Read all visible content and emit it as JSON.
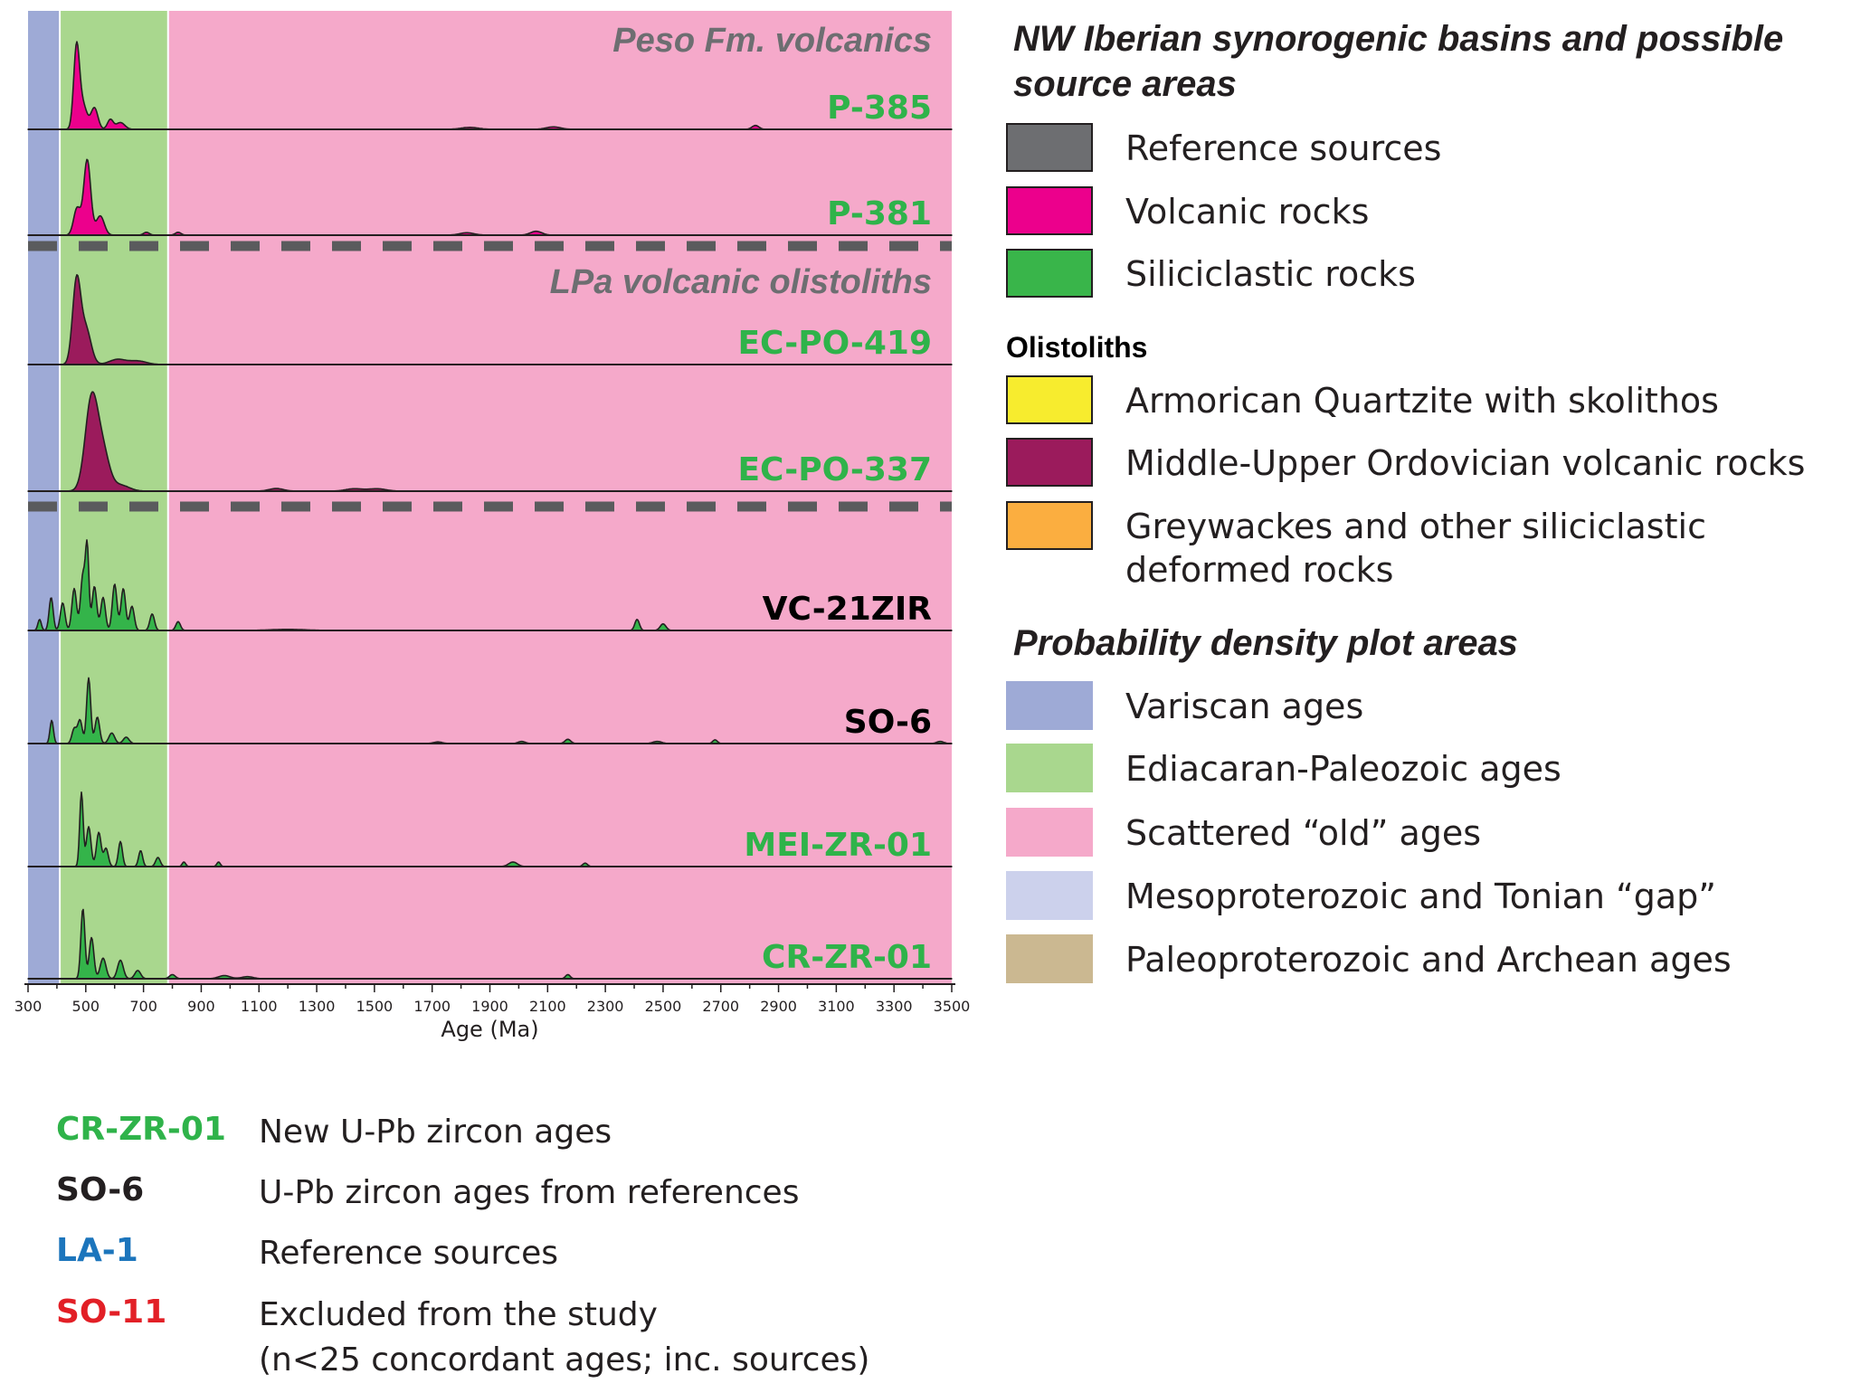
{
  "chart_data": {
    "type": "area",
    "xlabel": "Age (Ma)",
    "x_ticks": [
      "300",
      "500",
      "700",
      "900",
      "1100",
      "1300",
      "1500",
      "1700",
      "1900",
      "2100",
      "2300",
      "2500",
      "2700",
      "2900",
      "3100",
      "3300",
      "3500"
    ],
    "xlim": [
      300,
      3500
    ],
    "background_bands": [
      {
        "from": 300,
        "to": 410,
        "color": "#9eaad6"
      },
      {
        "from": 410,
        "to": 785,
        "color": "#a9d78e"
      },
      {
        "from": 785,
        "to": 3500,
        "color": "#f5a9ca"
      }
    ],
    "section_titles": [
      {
        "text": "Peso Fm. volcanics",
        "before_row": 0
      },
      {
        "text": "LPa volcanic olistoliths",
        "before_row": 2
      }
    ],
    "dividers_after_rows": [
      1,
      3
    ],
    "rows": [
      {
        "name": "P-385",
        "label_color": "#2fb34a",
        "fill": "#ec008c",
        "peaks": [
          [
            468,
            0.82,
            10
          ],
          [
            490,
            0.25,
            14
          ],
          [
            530,
            0.22,
            12
          ],
          [
            585,
            0.1,
            10
          ],
          [
            620,
            0.07,
            15
          ],
          [
            1830,
            0.02,
            30
          ],
          [
            2120,
            0.025,
            25
          ],
          [
            2820,
            0.04,
            12
          ]
        ]
      },
      {
        "name": "P-381",
        "label_color": "#2fb34a",
        "fill": "#ec008c",
        "peaks": [
          [
            505,
            0.78,
            12
          ],
          [
            470,
            0.28,
            12
          ],
          [
            550,
            0.2,
            14
          ],
          [
            710,
            0.03,
            10
          ],
          [
            820,
            0.03,
            10
          ],
          [
            1820,
            0.025,
            25
          ],
          [
            2060,
            0.04,
            20
          ]
        ]
      },
      {
        "name": "EC-PO-419",
        "label_color": "#2fb34a",
        "fill": "#9b1b5c",
        "peaks": [
          [
            468,
            0.8,
            14
          ],
          [
            500,
            0.35,
            18
          ],
          [
            610,
            0.05,
            28
          ],
          [
            680,
            0.035,
            30
          ]
        ]
      },
      {
        "name": "EC-PO-337",
        "label_color": "#2fb34a",
        "fill": "#9b1b5c",
        "peaks": [
          [
            520,
            0.76,
            22
          ],
          [
            560,
            0.3,
            22
          ],
          [
            620,
            0.05,
            30
          ],
          [
            1160,
            0.022,
            25
          ],
          [
            1430,
            0.02,
            30
          ],
          [
            1510,
            0.02,
            30
          ]
        ]
      },
      {
        "name": "VC-21ZIR",
        "label_color": "#000000",
        "fill": "#34b44a",
        "peaks": [
          [
            340,
            0.1,
            6
          ],
          [
            380,
            0.3,
            7
          ],
          [
            420,
            0.25,
            8
          ],
          [
            460,
            0.38,
            8
          ],
          [
            490,
            0.5,
            8
          ],
          [
            505,
            0.72,
            6
          ],
          [
            530,
            0.4,
            8
          ],
          [
            560,
            0.3,
            8
          ],
          [
            600,
            0.42,
            8
          ],
          [
            630,
            0.38,
            8
          ],
          [
            660,
            0.22,
            8
          ],
          [
            730,
            0.15,
            8
          ],
          [
            820,
            0.08,
            8
          ],
          [
            1200,
            0.01,
            60
          ],
          [
            2410,
            0.1,
            8
          ],
          [
            2500,
            0.06,
            10
          ]
        ]
      },
      {
        "name": "SO-6",
        "label_color": "#000000",
        "fill": "#34b44a",
        "peaks": [
          [
            382,
            0.22,
            6
          ],
          [
            460,
            0.14,
            8
          ],
          [
            480,
            0.22,
            8
          ],
          [
            510,
            0.62,
            7
          ],
          [
            540,
            0.25,
            8
          ],
          [
            590,
            0.1,
            10
          ],
          [
            640,
            0.06,
            10
          ],
          [
            1720,
            0.015,
            15
          ],
          [
            2010,
            0.02,
            12
          ],
          [
            2170,
            0.04,
            10
          ],
          [
            2480,
            0.02,
            15
          ],
          [
            2680,
            0.035,
            8
          ],
          [
            3460,
            0.02,
            12
          ]
        ]
      },
      {
        "name": "MEI-ZR-01",
        "label_color": "#2fb34a",
        "fill": "#34b44a",
        "peaks": [
          [
            485,
            0.65,
            6
          ],
          [
            510,
            0.35,
            8
          ],
          [
            545,
            0.3,
            8
          ],
          [
            570,
            0.16,
            8
          ],
          [
            620,
            0.22,
            7
          ],
          [
            690,
            0.14,
            7
          ],
          [
            750,
            0.08,
            8
          ],
          [
            840,
            0.04,
            6
          ],
          [
            960,
            0.04,
            6
          ],
          [
            1980,
            0.04,
            15
          ],
          [
            2230,
            0.03,
            8
          ]
        ]
      },
      {
        "name": "CR-ZR-01",
        "label_color": "#2fb34a",
        "fill": "#34b44a",
        "peaks": [
          [
            490,
            0.68,
            7
          ],
          [
            520,
            0.4,
            8
          ],
          [
            560,
            0.2,
            10
          ],
          [
            620,
            0.18,
            10
          ],
          [
            680,
            0.08,
            10
          ],
          [
            800,
            0.04,
            10
          ],
          [
            980,
            0.03,
            20
          ],
          [
            1060,
            0.02,
            20
          ],
          [
            2170,
            0.04,
            8
          ]
        ]
      }
    ]
  },
  "legend": {
    "title": "NW Iberian synorogenic basins and possible source areas",
    "group1": [
      {
        "label": "Reference sources",
        "color": "#6d6e71"
      },
      {
        "label": "Volcanic rocks",
        "color": "#ec008c"
      },
      {
        "label": "Siliciclastic rocks",
        "color": "#39b54a"
      }
    ],
    "olistoliths_title": "Olistoliths",
    "group2": [
      {
        "label": "Armorican Quartzite with skolithos",
        "color": "#f7ec2e"
      },
      {
        "label": "Middle-Upper Ordovician volcanic rocks",
        "color": "#9b1b5c"
      },
      {
        "label_line1": "Greywackes and other siliciclastic",
        "label_line2": "deformed rocks",
        "color": "#fbae40"
      }
    ],
    "areas_title": "Probability density plot areas",
    "group3": [
      {
        "label": "Variscan ages",
        "color": "#9eaad6"
      },
      {
        "label": "Ediacaran-Paleozoic ages",
        "color": "#a9d78e"
      },
      {
        "label": "Scattered “old” ages",
        "color": "#f5a9ca"
      },
      {
        "label": "Mesoproterozoic and Tonian “gap”",
        "color": "#ccd1ec"
      },
      {
        "label": "Paleoproterozoic and Archean ages",
        "color": "#cbb891"
      }
    ]
  },
  "key": [
    {
      "code": "CR-ZR-01",
      "desc": "New U-Pb zircon ages",
      "color": "#2fb34a"
    },
    {
      "code": "SO-6",
      "desc": "U-Pb zircon ages from references",
      "color": "#231f20"
    },
    {
      "code": "LA-1",
      "desc": "Reference sources",
      "color": "#1c75bc"
    },
    {
      "code": "SO-11",
      "desc_line1": "Excluded from the study",
      "desc_line2": "(n<25 concordant ages; inc. sources)",
      "color": "#e21f26"
    }
  ]
}
